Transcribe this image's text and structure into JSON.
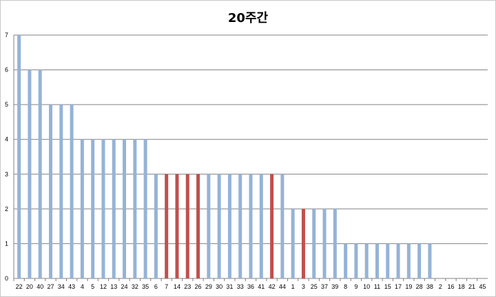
{
  "chart_data": {
    "type": "bar",
    "title": "20주간",
    "xlabel": "",
    "ylabel": "",
    "ylim": [
      0,
      7
    ],
    "yticks": [
      0,
      1,
      2,
      3,
      4,
      5,
      6,
      7
    ],
    "grid": true,
    "legend": "none",
    "categories": [
      "22",
      "20",
      "40",
      "27",
      "34",
      "43",
      "4",
      "5",
      "12",
      "13",
      "24",
      "32",
      "35",
      "6",
      "7",
      "14",
      "23",
      "26",
      "29",
      "30",
      "31",
      "33",
      "36",
      "41",
      "42",
      "44",
      "1",
      "3",
      "25",
      "37",
      "39",
      "8",
      "9",
      "10",
      "11",
      "15",
      "17",
      "19",
      "28",
      "38",
      "2",
      "16",
      "18",
      "21",
      "45"
    ],
    "values": [
      7,
      6,
      6,
      5,
      5,
      5,
      4,
      4,
      4,
      4,
      4,
      4,
      4,
      3,
      3,
      3,
      3,
      3,
      3,
      3,
      3,
      3,
      3,
      3,
      3,
      3,
      2,
      2,
      2,
      2,
      2,
      1,
      1,
      1,
      1,
      1,
      1,
      1,
      1,
      1,
      0,
      0,
      0,
      0,
      0
    ],
    "highlighted": [
      "7",
      "14",
      "23",
      "26",
      "42",
      "3"
    ],
    "colors": {
      "bar": "#95b3d7",
      "highlight": "#c0504d",
      "grid": "#808080",
      "axis": "#808080"
    }
  }
}
